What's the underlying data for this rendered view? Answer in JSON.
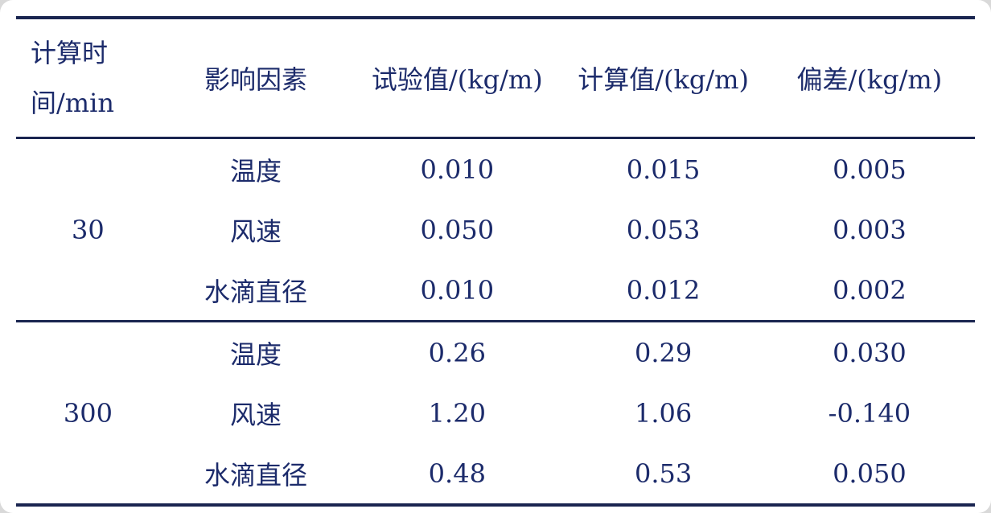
{
  "accent_color": "#1c2b6b",
  "table": {
    "headers": {
      "time_line1": "计算时",
      "time_line2": "间/min",
      "factor": "影响因素",
      "exp": "试验值/(kg/m)",
      "calc": "计算值/(kg/m)",
      "dev": "偏差/(kg/m)"
    },
    "groups": [
      {
        "time": "30",
        "rows": [
          {
            "factor": "温度",
            "exp": "0.010",
            "calc": "0.015",
            "dev": "0.005"
          },
          {
            "factor": "风速",
            "exp": "0.050",
            "calc": "0.053",
            "dev": "0.003"
          },
          {
            "factor": "水滴直径",
            "exp": "0.010",
            "calc": "0.012",
            "dev": "0.002"
          }
        ]
      },
      {
        "time": "300",
        "rows": [
          {
            "factor": "温度",
            "exp": "0.26",
            "calc": "0.29",
            "dev": "0.030"
          },
          {
            "factor": "风速",
            "exp": "1.20",
            "calc": "1.06",
            "dev": "-0.140"
          },
          {
            "factor": "水滴直径",
            "exp": "0.48",
            "calc": "0.53",
            "dev": "0.050"
          }
        ]
      }
    ]
  }
}
